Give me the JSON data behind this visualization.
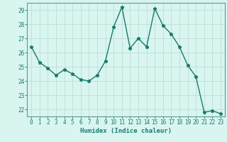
{
  "x": [
    0,
    1,
    2,
    3,
    4,
    5,
    6,
    7,
    8,
    9,
    10,
    11,
    12,
    13,
    14,
    15,
    16,
    17,
    18,
    19,
    20,
    21,
    22,
    23
  ],
  "y": [
    26.4,
    25.3,
    24.9,
    24.4,
    24.8,
    24.5,
    24.1,
    24.0,
    24.4,
    25.4,
    27.8,
    29.2,
    26.3,
    27.0,
    26.4,
    29.1,
    27.9,
    27.3,
    26.4,
    25.1,
    24.3,
    21.8,
    21.9,
    21.7
  ],
  "line_color": "#1a7a6e",
  "marker": "*",
  "marker_size": 3.5,
  "bg_color": "#d8f5f0",
  "grid_color": "#c0ddd8",
  "xlabel": "Humidex (Indice chaleur)",
  "xlim": [
    -0.5,
    23.5
  ],
  "ylim": [
    21.5,
    29.5
  ],
  "yticks": [
    22,
    23,
    24,
    25,
    26,
    27,
    28,
    29
  ],
  "xticks": [
    0,
    1,
    2,
    3,
    4,
    5,
    6,
    7,
    8,
    9,
    10,
    11,
    12,
    13,
    14,
    15,
    16,
    17,
    18,
    19,
    20,
    21,
    22,
    23
  ],
  "tick_color": "#1a7a6e",
  "label_fontsize": 5.5,
  "xlabel_fontsize": 6.5,
  "line_width": 1.0,
  "spine_color": "#5a9a90"
}
